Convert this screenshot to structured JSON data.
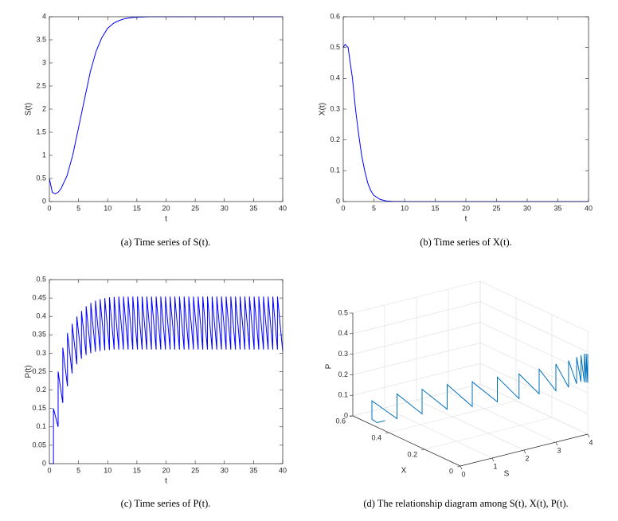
{
  "chart_data": [
    {
      "type": "line",
      "xlabel": "t",
      "ylabel": "S(t)",
      "caption": "(a) Time series of S(t).",
      "color": "#0000ff",
      "x": [
        0,
        0.5,
        1,
        1.5,
        2,
        3,
        4,
        5,
        6,
        7,
        8,
        9,
        10,
        11,
        12,
        13,
        14,
        15,
        17,
        20,
        25,
        30,
        35,
        40
      ],
      "values": [
        0.5,
        0.2,
        0.17,
        0.2,
        0.28,
        0.55,
        1.0,
        1.6,
        2.2,
        2.8,
        3.25,
        3.55,
        3.75,
        3.86,
        3.92,
        3.96,
        3.98,
        3.99,
        4,
        4,
        4,
        4,
        4,
        4
      ],
      "xlim": [
        0,
        40
      ],
      "xticks": [
        0,
        5,
        10,
        15,
        20,
        25,
        30,
        35,
        40
      ],
      "ylim": [
        0,
        4
      ],
      "yticks": [
        0,
        0.5,
        1,
        1.5,
        2,
        2.5,
        3,
        3.5,
        4
      ]
    },
    {
      "type": "line",
      "xlabel": "t",
      "ylabel": "X(t)",
      "caption": "(b) Time series of X(t).",
      "color": "#0000ff",
      "x": [
        0,
        0.3,
        0.8,
        1,
        1.5,
        2,
        2.5,
        3,
        3.5,
        4,
        4.5,
        5,
        6,
        7,
        8,
        10,
        20,
        30,
        40
      ],
      "values": [
        0.5,
        0.51,
        0.5,
        0.47,
        0.4,
        0.3,
        0.22,
        0.15,
        0.1,
        0.06,
        0.035,
        0.02,
        0.007,
        0.002,
        0.0005,
        0,
        0,
        0,
        0
      ],
      "xlim": [
        0,
        40
      ],
      "xticks": [
        0,
        5,
        10,
        15,
        20,
        25,
        30,
        35,
        40
      ],
      "ylim": [
        0,
        0.6
      ],
      "yticks": [
        0,
        0.1,
        0.2,
        0.3,
        0.4,
        0.5,
        0.6
      ]
    },
    {
      "type": "line",
      "xlabel": "t",
      "ylabel": "P(t)",
      "caption": "(c) Time series of P(t).",
      "color": "#0000ff",
      "x": [
        0,
        0.7,
        0.7,
        1.5,
        1.5,
        2.3,
        2.3,
        3.1,
        3.1,
        3.9,
        3.9,
        4.7,
        4.7,
        5.5,
        5.5,
        6.3,
        6.3,
        7.1,
        7.1,
        7.9,
        7.9,
        8.7,
        8.7,
        9.5,
        9.5,
        10.3,
        10.3,
        11.1,
        11.1,
        11.9,
        11.9,
        12.7,
        12.7,
        13.5,
        13.5,
        14.3,
        14.3,
        15.1,
        15.1,
        15.9,
        15.9,
        16.7,
        16.7,
        17.5,
        17.5,
        18.3,
        18.3,
        19.1,
        19.1,
        19.9,
        19.9,
        20.7,
        20.7,
        21.5,
        21.5,
        22.3,
        22.3,
        23.1,
        23.1,
        23.9,
        23.9,
        24.7,
        24.7,
        25.5,
        25.5,
        26.3,
        26.3,
        27.1,
        27.1,
        27.9,
        27.9,
        28.7,
        28.7,
        29.5,
        29.5,
        30.3,
        30.3,
        31.1,
        31.1,
        31.9,
        31.9,
        32.7,
        32.7,
        33.5,
        33.5,
        34.3,
        34.3,
        35.1,
        35.1,
        35.9,
        35.9,
        36.7,
        36.7,
        37.5,
        37.5,
        38.3,
        38.3,
        39.1,
        39.1,
        40
      ],
      "values": [
        0,
        0,
        0.15,
        0.1,
        0.25,
        0.165,
        0.315,
        0.21,
        0.355,
        0.245,
        0.38,
        0.27,
        0.4,
        0.285,
        0.415,
        0.295,
        0.428,
        0.3,
        0.437,
        0.304,
        0.443,
        0.306,
        0.447,
        0.308,
        0.45,
        0.309,
        0.452,
        0.31,
        0.453,
        0.31,
        0.454,
        0.31,
        0.454,
        0.31,
        0.454,
        0.31,
        0.454,
        0.31,
        0.454,
        0.31,
        0.454,
        0.31,
        0.454,
        0.31,
        0.454,
        0.31,
        0.454,
        0.31,
        0.454,
        0.31,
        0.454,
        0.31,
        0.454,
        0.31,
        0.454,
        0.31,
        0.454,
        0.31,
        0.454,
        0.31,
        0.454,
        0.31,
        0.454,
        0.31,
        0.454,
        0.31,
        0.454,
        0.31,
        0.454,
        0.31,
        0.454,
        0.31,
        0.454,
        0.31,
        0.454,
        0.31,
        0.454,
        0.31,
        0.454,
        0.31,
        0.454,
        0.31,
        0.454,
        0.31,
        0.454,
        0.31,
        0.454,
        0.31,
        0.454,
        0.31,
        0.454,
        0.31,
        0.454,
        0.31,
        0.454,
        0.31,
        0.454,
        0.31,
        0.454,
        0.305
      ],
      "xlim": [
        0,
        40
      ],
      "xticks": [
        0,
        5,
        10,
        15,
        20,
        25,
        30,
        35,
        40
      ],
      "ylim": [
        0,
        0.5
      ],
      "yticks": [
        0,
        0.05,
        0.1,
        0.15,
        0.2,
        0.25,
        0.3,
        0.35,
        0.4,
        0.45,
        0.5
      ]
    },
    {
      "type": "line3d",
      "xlabel": "S",
      "ylabel": "X",
      "zlabel": "P",
      "caption": "(d) The relationship diagram among S(t), X(t), P(t).",
      "color": "#0072bd",
      "x": [
        0.45,
        0.2,
        0.15,
        0.15,
        0.6,
        0.6,
        1.05,
        1.05,
        1.5,
        1.5,
        1.95,
        1.95,
        2.4,
        2.4,
        2.8,
        2.8,
        3.15,
        3.15,
        3.45,
        3.45,
        3.68,
        3.68,
        3.82,
        3.82,
        3.9,
        3.9,
        3.95,
        3.95,
        3.98,
        3.98,
        4,
        4,
        4
      ],
      "y": [
        0.5,
        0.5,
        0.52,
        0.52,
        0.46,
        0.46,
        0.4,
        0.4,
        0.34,
        0.34,
        0.28,
        0.28,
        0.22,
        0.22,
        0.17,
        0.17,
        0.12,
        0.12,
        0.08,
        0.08,
        0.05,
        0.05,
        0.03,
        0.03,
        0.02,
        0.02,
        0.01,
        0.01,
        0.005,
        0.005,
        0,
        0,
        0
      ],
      "z": [
        0,
        0,
        0.01,
        0.1,
        0.02,
        0.14,
        0.05,
        0.17,
        0.08,
        0.2,
        0.1,
        0.22,
        0.13,
        0.25,
        0.15,
        0.27,
        0.18,
        0.3,
        0.2,
        0.33,
        0.22,
        0.35,
        0.24,
        0.37,
        0.25,
        0.38,
        0.25,
        0.39,
        0.25,
        0.39,
        0.25,
        0.39,
        0.25
      ],
      "xlim": [
        0,
        4
      ],
      "xticks": [
        0,
        1,
        2,
        3,
        4
      ],
      "ylim": [
        0,
        0.6
      ],
      "yticks": [
        0,
        0.2,
        0.4,
        0.6
      ],
      "zlim": [
        0,
        0.5
      ],
      "zticks": [
        0,
        0.1,
        0.2,
        0.3,
        0.4,
        0.5
      ],
      "grid": true
    }
  ]
}
